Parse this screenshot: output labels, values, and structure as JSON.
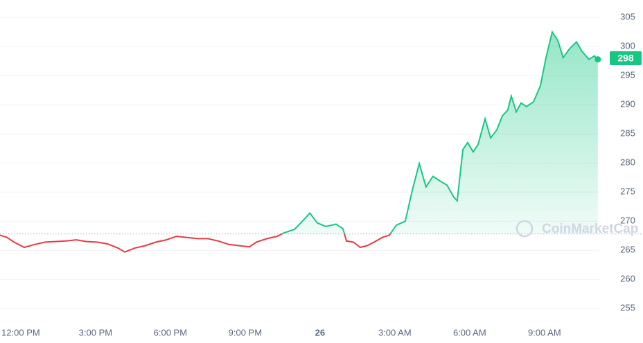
{
  "chart_data": {
    "type": "line",
    "series": [
      {
        "name": null,
        "color": "#16c784",
        "below_color": "#ea3943",
        "x": [
          -0.83,
          -0.55,
          -0.27,
          0.14,
          0.56,
          0.98,
          1.39,
          1.81,
          2.23,
          2.64,
          3.06,
          3.48,
          3.89,
          4.17,
          4.59,
          5.0,
          5.42,
          5.84,
          6.25,
          6.67,
          7.09,
          7.5,
          7.92,
          8.34,
          8.75,
          9.17,
          9.45,
          9.87,
          10.28,
          10.56,
          10.98,
          11.34,
          11.59,
          11.89,
          12.23,
          12.64,
          12.92,
          13.06,
          13.34,
          13.61,
          13.89,
          14.17,
          14.5,
          14.78,
          15.06,
          15.42,
          15.7,
          15.98,
          16.25,
          16.53,
          16.81,
          17.09,
          17.37,
          17.5,
          17.73,
          17.92,
          18.14,
          18.34,
          18.62,
          18.84,
          19.09,
          19.31,
          19.53,
          19.67,
          19.87,
          20.06,
          20.28,
          20.56,
          20.84,
          21.06,
          21.31,
          21.53,
          21.75,
          22.0,
          22.28,
          22.5,
          22.78,
          23.0,
          23.14
        ],
        "values": [
          267.6,
          267.2,
          266.4,
          265.5,
          266.0,
          266.4,
          266.5,
          266.6,
          266.8,
          266.5,
          266.4,
          266.1,
          265.4,
          264.7,
          265.4,
          265.8,
          266.4,
          266.8,
          267.4,
          267.2,
          267.0,
          267.0,
          266.6,
          266.0,
          265.8,
          265.6,
          266.4,
          267.0,
          267.4,
          268.0,
          268.6,
          270.2,
          271.4,
          269.7,
          269.1,
          269.5,
          268.7,
          266.6,
          266.4,
          265.5,
          265.8,
          266.4,
          267.2,
          267.6,
          269.3,
          270.0,
          275.3,
          279.9,
          275.9,
          277.7,
          276.9,
          276.2,
          274.1,
          273.5,
          282.3,
          283.5,
          281.9,
          283.2,
          287.6,
          284.3,
          285.7,
          288.1,
          289.1,
          291.5,
          288.8,
          290.3,
          289.7,
          290.5,
          293.3,
          298.1,
          302.5,
          301.1,
          298.1,
          299.6,
          300.8,
          299.2,
          297.8,
          298.4,
          297.8
        ]
      }
    ],
    "reference_value": 267.8,
    "price_label": 298,
    "watermark": "CoinMarketCap",
    "xlim": [
      -0.83,
      23.2
    ],
    "xticks": [
      {
        "value": 0,
        "label": "12:00 PM"
      },
      {
        "value": 3,
        "label": "3:00 PM"
      },
      {
        "value": 6,
        "label": "6:00 PM"
      },
      {
        "value": 9,
        "label": "9:00 PM"
      },
      {
        "value": 12,
        "label": "26"
      },
      {
        "value": 15,
        "label": "3:00 AM"
      },
      {
        "value": 18,
        "label": "6:00 AM"
      },
      {
        "value": 21,
        "label": "9:00 AM"
      }
    ],
    "ylim": [
      253,
      308
    ],
    "yticks": [
      255,
      260,
      265,
      270,
      275,
      280,
      285,
      290,
      295,
      300,
      305
    ],
    "grid": true
  }
}
